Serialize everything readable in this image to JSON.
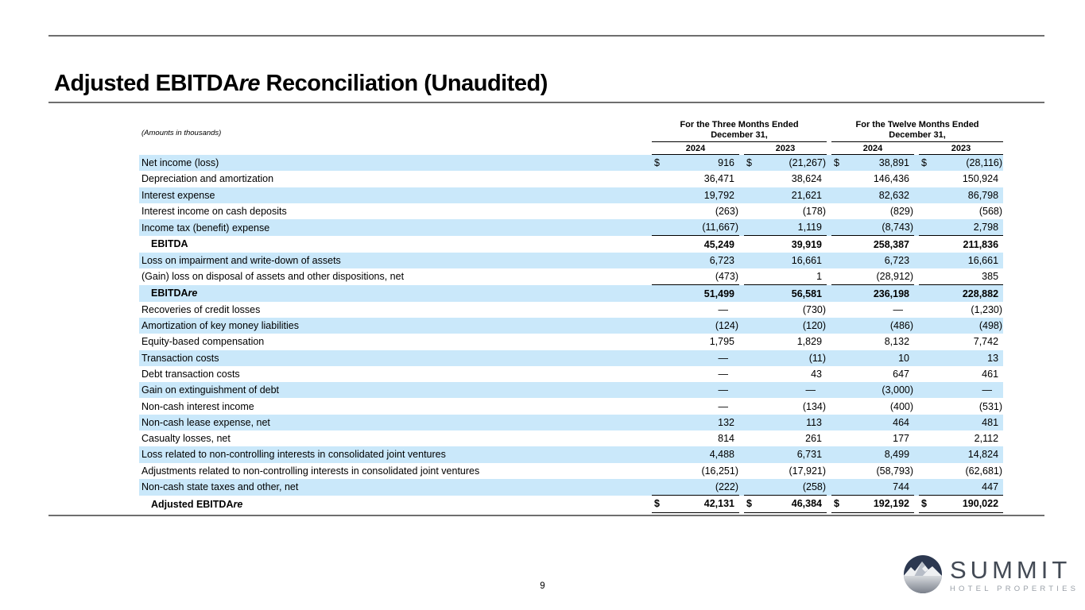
{
  "page": {
    "title_segments": [
      {
        "t": "Adjusted EBITDA"
      },
      {
        "t": "re",
        "i": true
      },
      {
        "t": " Reconciliation (Unaudited)"
      }
    ],
    "page_number": "9"
  },
  "table": {
    "note": "(Amounts in thousands)",
    "currency_symbol": "$",
    "dash": "—",
    "column_groups": [
      {
        "line1": "For the Three Months Ended",
        "line2": "December 31,",
        "years": [
          "2024",
          "2023"
        ]
      },
      {
        "line1": "For the Twelve Months Ended",
        "line2": "December 31,",
        "years": [
          "2024",
          "2023"
        ]
      }
    ],
    "rows": [
      {
        "label": [
          {
            "t": "Net income (loss)"
          }
        ],
        "highlight": true,
        "dollar": true,
        "values": [
          "916",
          "(21,267)",
          "38,891",
          "(28,116)"
        ]
      },
      {
        "label": [
          {
            "t": "Depreciation and amortization"
          }
        ],
        "values": [
          "36,471",
          "38,624",
          "146,436",
          "150,924"
        ]
      },
      {
        "label": [
          {
            "t": "Interest expense"
          }
        ],
        "highlight": true,
        "values": [
          "19,792",
          "21,621",
          "82,632",
          "86,798"
        ]
      },
      {
        "label": [
          {
            "t": "Interest income on cash deposits"
          }
        ],
        "values": [
          "(263)",
          "(178)",
          "(829)",
          "(568)"
        ]
      },
      {
        "label": [
          {
            "t": "Income tax (benefit) expense"
          }
        ],
        "highlight": true,
        "rule": "single",
        "values": [
          "(11,667)",
          "1,119",
          "(8,743)",
          "2,798"
        ]
      },
      {
        "label": [
          {
            "t": "EBITDA"
          }
        ],
        "bold": true,
        "indent": true,
        "values": [
          "45,249",
          "39,919",
          "258,387",
          "211,836"
        ]
      },
      {
        "label": [
          {
            "t": "Loss on impairment and write-down of assets"
          }
        ],
        "highlight": true,
        "values": [
          "6,723",
          "16,661",
          "6,723",
          "16,661"
        ]
      },
      {
        "label": [
          {
            "t": "(Gain) loss on disposal of assets and other dispositions, net"
          }
        ],
        "rule": "single",
        "values": [
          "(473)",
          "1",
          "(28,912)",
          "385"
        ]
      },
      {
        "label": [
          {
            "t": "EBITDA"
          },
          {
            "t": "re",
            "i": true
          }
        ],
        "bold": true,
        "indent": true,
        "highlight": true,
        "values": [
          "51,499",
          "56,581",
          "236,198",
          "228,882"
        ]
      },
      {
        "label": [
          {
            "t": "Recoveries of credit losses"
          }
        ],
        "values": [
          "—",
          "(730)",
          "—",
          "(1,230)"
        ]
      },
      {
        "label": [
          {
            "t": "Amortization of key money liabilities"
          }
        ],
        "highlight": true,
        "values": [
          "(124)",
          "(120)",
          "(486)",
          "(498)"
        ]
      },
      {
        "label": [
          {
            "t": "Equity-based compensation"
          }
        ],
        "values": [
          "1,795",
          "1,829",
          "8,132",
          "7,742"
        ]
      },
      {
        "label": [
          {
            "t": "Transaction costs"
          }
        ],
        "highlight": true,
        "values": [
          "—",
          "(11)",
          "10",
          "13"
        ]
      },
      {
        "label": [
          {
            "t": "Debt transaction costs"
          }
        ],
        "values": [
          "—",
          "43",
          "647",
          "461"
        ]
      },
      {
        "label": [
          {
            "t": "Gain on extinguishment of debt"
          }
        ],
        "highlight": true,
        "values": [
          "—",
          "—",
          "(3,000)",
          "—"
        ]
      },
      {
        "label": [
          {
            "t": "Non-cash interest income"
          }
        ],
        "values": [
          "—",
          "(134)",
          "(400)",
          "(531)"
        ]
      },
      {
        "label": [
          {
            "t": "Non-cash lease expense, net"
          }
        ],
        "highlight": true,
        "values": [
          "132",
          "113",
          "464",
          "481"
        ]
      },
      {
        "label": [
          {
            "t": "Casualty losses, net"
          }
        ],
        "values": [
          "814",
          "261",
          "177",
          "2,112"
        ]
      },
      {
        "label": [
          {
            "t": "Loss related to non-controlling interests in consolidated joint ventures"
          }
        ],
        "highlight": true,
        "values": [
          "4,488",
          "6,731",
          "8,499",
          "14,824"
        ]
      },
      {
        "label": [
          {
            "t": "Adjustments related to non-controlling interests in consolidated joint ventures"
          }
        ],
        "values": [
          "(16,251)",
          "(17,921)",
          "(58,793)",
          "(62,681)"
        ]
      },
      {
        "label": [
          {
            "t": "Non-cash state taxes and other, net"
          }
        ],
        "highlight": true,
        "rule": "single",
        "values": [
          "(222)",
          "(258)",
          "744",
          "447"
        ]
      },
      {
        "label": [
          {
            "t": "Adjusted EBITDA"
          },
          {
            "t": "re",
            "i": true
          }
        ],
        "bold": true,
        "indent": true,
        "dollar": true,
        "rule": "double",
        "values": [
          "42,131",
          "46,384",
          "192,192",
          "190,022"
        ]
      }
    ]
  },
  "footer": {
    "logo_name": "SUMMIT",
    "logo_tagline": "HOTEL PROPERTIES"
  },
  "colors": {
    "row_highlight": "#cae8fa",
    "rule_gray": "#6e6e6e",
    "sum_line_black": "#000000",
    "logo_navy": "#2c3850",
    "logo_text": "#434a55",
    "logo_tagline_text": "#9aa0a8"
  }
}
